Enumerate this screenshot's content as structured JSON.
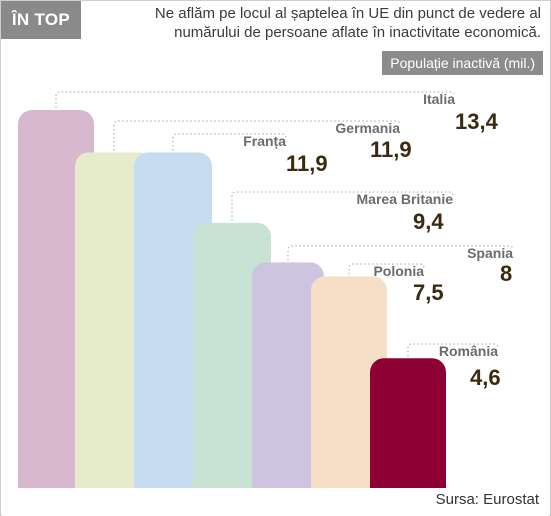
{
  "header": {
    "badge": "ÎN TOP",
    "subtitle": "Ne aflăm pe locul al șaptelea în UE din punct de vedere al numărului de persoane aflate în inactivitate economică.",
    "unit_label": "Populație inactivă (mil.)"
  },
  "footer": {
    "source": "Sursa: Eurostat"
  },
  "chart_data": {
    "type": "bar",
    "title": "",
    "xlabel": "",
    "ylabel": "Populație inactivă (mil.)",
    "ylim": [
      0,
      13.4
    ],
    "categories": [
      "Italia",
      "Germania",
      "Franța",
      "Marea Britanie",
      "Spania",
      "Polonia",
      "România"
    ],
    "values": [
      13.4,
      11.9,
      11.9,
      9.4,
      8,
      7.5,
      4.6
    ],
    "value_labels": [
      "13,4",
      "11,9",
      "11,9",
      "9,4",
      "8",
      "7,5",
      "4,6"
    ],
    "colors": [
      "#d7b8cf",
      "#e6eccb",
      "#c5dcf1",
      "#c8e2d3",
      "#cdc4e2",
      "#f7dfc7",
      "#8e0033"
    ],
    "grid": false,
    "legend": "none"
  }
}
